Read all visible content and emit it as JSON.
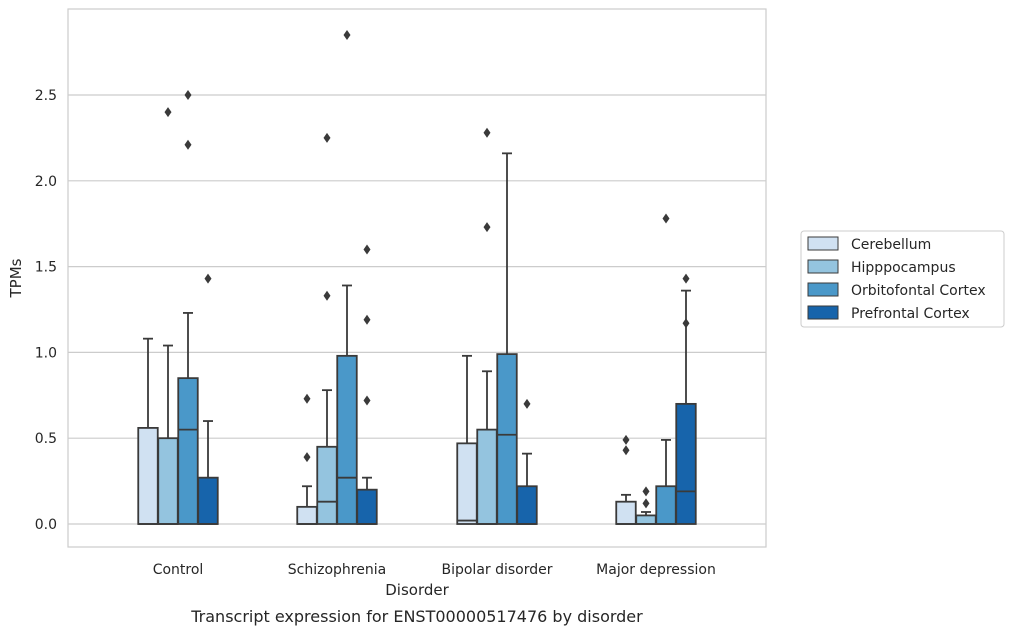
{
  "chart_data": {
    "type": "box",
    "title": "",
    "caption": "Transcript expression for ENST00000517476 by disorder",
    "xlabel": "Disorder",
    "ylabel": "TPMs",
    "ylim": [
      -0.14,
      3.0
    ],
    "yticks": [
      0.0,
      0.5,
      1.0,
      1.5,
      2.0,
      2.5
    ],
    "ytick_labels": [
      "0.0",
      "0.5",
      "1.0",
      "1.5",
      "2.0",
      "2.5"
    ],
    "grid": "horizontal",
    "legend_position": "right",
    "categories": [
      "Control",
      "Schizophrenia",
      "Bipolar disorder",
      "Major depression"
    ],
    "series": [
      {
        "name": "Cerebellum",
        "color": "#d0e1f2",
        "boxes": [
          {
            "whisker_low": 0.0,
            "q1": 0.0,
            "median": 0.0,
            "q3": 0.56,
            "whisker_high": 1.08,
            "outliers": []
          },
          {
            "whisker_low": 0.0,
            "q1": 0.0,
            "median": 0.0,
            "q3": 0.1,
            "whisker_high": 0.22,
            "outliers": [
              0.39,
              0.73
            ]
          },
          {
            "whisker_low": 0.0,
            "q1": 0.0,
            "median": 0.02,
            "q3": 0.47,
            "whisker_high": 0.98,
            "outliers": []
          },
          {
            "whisker_low": 0.0,
            "q1": 0.0,
            "median": 0.0,
            "q3": 0.13,
            "whisker_high": 0.17,
            "outliers": [
              0.43,
              0.49
            ]
          }
        ]
      },
      {
        "name": "Hipppocampus",
        "color": "#94c4df",
        "boxes": [
          {
            "whisker_low": 0.0,
            "q1": 0.0,
            "median": 0.0,
            "q3": 0.5,
            "whisker_high": 1.04,
            "outliers": [
              2.4
            ]
          },
          {
            "whisker_low": 0.0,
            "q1": 0.0,
            "median": 0.13,
            "q3": 0.45,
            "whisker_high": 0.78,
            "outliers": [
              1.33,
              2.25
            ]
          },
          {
            "whisker_low": 0.0,
            "q1": 0.0,
            "median": 0.0,
            "q3": 0.55,
            "whisker_high": 0.89,
            "outliers": [
              1.73,
              2.28
            ]
          },
          {
            "whisker_low": 0.0,
            "q1": 0.0,
            "median": 0.0,
            "q3": 0.05,
            "whisker_high": 0.07,
            "outliers": [
              0.12,
              0.19
            ]
          }
        ]
      },
      {
        "name": "Orbitofontal Cortex",
        "color": "#4a98c9",
        "boxes": [
          {
            "whisker_low": 0.0,
            "q1": 0.0,
            "median": 0.55,
            "q3": 0.85,
            "whisker_high": 1.23,
            "outliers": [
              2.21,
              2.5
            ]
          },
          {
            "whisker_low": 0.0,
            "q1": 0.0,
            "median": 0.27,
            "q3": 0.98,
            "whisker_high": 1.39,
            "outliers": [
              2.85
            ]
          },
          {
            "whisker_low": 0.0,
            "q1": 0.0,
            "median": 0.52,
            "q3": 0.99,
            "whisker_high": 2.16,
            "outliers": []
          },
          {
            "whisker_low": 0.0,
            "q1": 0.0,
            "median": 0.0,
            "q3": 0.22,
            "whisker_high": 0.49,
            "outliers": [
              1.78
            ]
          }
        ]
      },
      {
        "name": "Prefrontal Cortex",
        "color": "#1764ab",
        "boxes": [
          {
            "whisker_low": 0.0,
            "q1": 0.0,
            "median": 0.0,
            "q3": 0.27,
            "whisker_high": 0.6,
            "outliers": [
              1.43
            ]
          },
          {
            "whisker_low": 0.0,
            "q1": 0.0,
            "median": 0.0,
            "q3": 0.2,
            "whisker_high": 0.27,
            "outliers": [
              0.72,
              1.19,
              1.6
            ]
          },
          {
            "whisker_low": 0.0,
            "q1": 0.0,
            "median": 0.0,
            "q3": 0.22,
            "whisker_high": 0.41,
            "outliers": [
              0.7
            ]
          },
          {
            "whisker_low": 0.0,
            "q1": 0.0,
            "median": 0.19,
            "q3": 0.7,
            "whisker_high": 1.36,
            "outliers": [
              1.17,
              1.43
            ]
          }
        ]
      }
    ]
  }
}
